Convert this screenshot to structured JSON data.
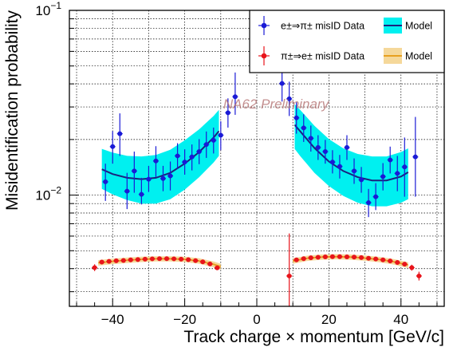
{
  "chart_data": {
    "type": "scatter",
    "title": "",
    "xlabel": "Track charge × momentum [GeV/c]",
    "ylabel": "Misidentification probability",
    "xlim": [
      -52,
      52
    ],
    "ylim": [
      0.0025,
      0.1
    ],
    "yscale": "log",
    "grid": true,
    "legend_position": "top-right",
    "watermark": "NA62 Preliminary",
    "x_ticks": [
      {
        "value": -40,
        "label": "−40"
      },
      {
        "value": -20,
        "label": "−20"
      },
      {
        "value": 0,
        "label": "0"
      },
      {
        "value": 20,
        "label": "20"
      },
      {
        "value": 40,
        "label": "40"
      }
    ],
    "y_ticks": [
      {
        "value": 0.01,
        "base": "10",
        "exp": "−2"
      },
      {
        "value": 0.1,
        "base": "10",
        "exp": "−1"
      }
    ],
    "series": [
      {
        "name": "e±⇒π± misID Data",
        "kind": "data",
        "color": "#1a1ad6",
        "points": [
          {
            "x": -42,
            "y": 0.0118,
            "lo": 0.0093,
            "hi": 0.0148
          },
          {
            "x": -40,
            "y": 0.0183,
            "lo": 0.0148,
            "hi": 0.0222
          },
          {
            "x": -38,
            "y": 0.0215,
            "lo": 0.0163,
            "hi": 0.0277
          },
          {
            "x": -36,
            "y": 0.0105,
            "lo": 0.0084,
            "hi": 0.0132
          },
          {
            "x": -34,
            "y": 0.0135,
            "lo": 0.0103,
            "hi": 0.0172
          },
          {
            "x": -32,
            "y": 0.0101,
            "lo": 0.0089,
            "hi": 0.0124
          },
          {
            "x": -30,
            "y": 0.0122,
            "lo": 0.0104,
            "hi": 0.0144
          },
          {
            "x": -28,
            "y": 0.0153,
            "lo": 0.0125,
            "hi": 0.0184
          },
          {
            "x": -26,
            "y": 0.0123,
            "lo": 0.0105,
            "hi": 0.0144
          },
          {
            "x": -24,
            "y": 0.0127,
            "lo": 0.0106,
            "hi": 0.0152
          },
          {
            "x": -22,
            "y": 0.0163,
            "lo": 0.0139,
            "hi": 0.0191
          },
          {
            "x": -20,
            "y": 0.0151,
            "lo": 0.0129,
            "hi": 0.0177
          },
          {
            "x": -18,
            "y": 0.0161,
            "lo": 0.0136,
            "hi": 0.0188
          },
          {
            "x": -16,
            "y": 0.0172,
            "lo": 0.0147,
            "hi": 0.0201
          },
          {
            "x": -14,
            "y": 0.0188,
            "lo": 0.0159,
            "hi": 0.0221
          },
          {
            "x": -12,
            "y": 0.0198,
            "lo": 0.0168,
            "hi": 0.0232
          },
          {
            "x": -10,
            "y": 0.0211,
            "lo": 0.0175,
            "hi": 0.0251
          },
          {
            "x": -8,
            "y": 0.0279,
            "lo": 0.0232,
            "hi": 0.0334
          },
          {
            "x": -6,
            "y": 0.0341,
            "lo": 0.0272,
            "hi": 0.0461
          },
          {
            "x": 7,
            "y": 0.0402,
            "lo": 0.0321,
            "hi": 0.0533
          },
          {
            "x": 9,
            "y": 0.0332,
            "lo": 0.0268,
            "hi": 0.0411
          },
          {
            "x": 11,
            "y": 0.0262,
            "lo": 0.0215,
            "hi": 0.0318
          },
          {
            "x": 13,
            "y": 0.0231,
            "lo": 0.0194,
            "hi": 0.0274
          },
          {
            "x": 15,
            "y": 0.0203,
            "lo": 0.0172,
            "hi": 0.0238
          },
          {
            "x": 17,
            "y": 0.0181,
            "lo": 0.0155,
            "hi": 0.0211
          },
          {
            "x": 19,
            "y": 0.0172,
            "lo": 0.0148,
            "hi": 0.0199
          },
          {
            "x": 21,
            "y": 0.0151,
            "lo": 0.0131,
            "hi": 0.0175
          },
          {
            "x": 23,
            "y": 0.0143,
            "lo": 0.0123,
            "hi": 0.0165
          },
          {
            "x": 25,
            "y": 0.0181,
            "lo": 0.0155,
            "hi": 0.0211
          },
          {
            "x": 27,
            "y": 0.0135,
            "lo": 0.0115,
            "hi": 0.0158
          },
          {
            "x": 29,
            "y": 0.0121,
            "lo": 0.0103,
            "hi": 0.0142
          },
          {
            "x": 31,
            "y": 0.0091,
            "lo": 0.0076,
            "hi": 0.0108
          },
          {
            "x": 33,
            "y": 0.0098,
            "lo": 0.0083,
            "hi": 0.0116
          },
          {
            "x": 35,
            "y": 0.0126,
            "lo": 0.0106,
            "hi": 0.0149
          },
          {
            "x": 37,
            "y": 0.0155,
            "lo": 0.0131,
            "hi": 0.0183
          },
          {
            "x": 39,
            "y": 0.0131,
            "lo": 0.0105,
            "hi": 0.0163
          },
          {
            "x": 41,
            "y": 0.0142,
            "lo": 0.0098,
            "hi": 0.0205
          },
          {
            "x": 44,
            "y": 0.0161,
            "lo": 0.0098,
            "hi": 0.0265
          }
        ]
      },
      {
        "name": "Model",
        "kind": "model",
        "color": "#1a237e",
        "band_color": "#00f0f0",
        "segments": [
          {
            "x": [
              -43,
              -40,
              -36,
              -32,
              -28,
              -24,
              -20,
              -16,
              -12,
              -10.5
            ],
            "y": [
              0.0138,
              0.013,
              0.0124,
              0.0122,
              0.0124,
              0.0132,
              0.0148,
              0.0171,
              0.0205,
              0.0222
            ],
            "lo": [
              0.0108,
              0.0101,
              0.0094,
              0.009,
              0.009,
              0.0095,
              0.0107,
              0.0125,
              0.015,
              0.0163
            ],
            "hi": [
              0.0178,
              0.017,
              0.0163,
              0.0162,
              0.0165,
              0.0176,
              0.0198,
              0.0227,
              0.0268,
              0.0289
            ]
          },
          {
            "x": [
              10.5,
              12,
              16,
              20,
              24,
              28,
              32,
              36,
              40,
              42
            ],
            "y": [
              0.024,
              0.0222,
              0.018,
              0.0152,
              0.0135,
              0.0125,
              0.012,
              0.012,
              0.0126,
              0.0133
            ],
            "lo": [
              0.0178,
              0.0163,
              0.0132,
              0.0112,
              0.0099,
              0.0091,
              0.0087,
              0.0087,
              0.0091,
              0.0095
            ],
            "hi": [
              0.031,
              0.029,
              0.0237,
              0.0201,
              0.0179,
              0.0167,
              0.0162,
              0.0162,
              0.0171,
              0.0179
            ]
          }
        ]
      },
      {
        "name": "π±⇒e± misID Data",
        "kind": "data",
        "color": "#e8141b",
        "points": [
          {
            "x": -45,
            "y": 0.00405,
            "lo": 0.00388,
            "hi": 0.00422
          },
          {
            "x": -43,
            "y": 0.00434,
            "lo": 0.00422,
            "hi": 0.00446
          },
          {
            "x": -41,
            "y": 0.00438,
            "lo": 0.00428,
            "hi": 0.00448
          },
          {
            "x": -39,
            "y": 0.00441,
            "lo": 0.00431,
            "hi": 0.00451
          },
          {
            "x": -37,
            "y": 0.00443,
            "lo": 0.00433,
            "hi": 0.00453
          },
          {
            "x": -35,
            "y": 0.00446,
            "lo": 0.00436,
            "hi": 0.00456
          },
          {
            "x": -33,
            "y": 0.00448,
            "lo": 0.00438,
            "hi": 0.00458
          },
          {
            "x": -31,
            "y": 0.0045,
            "lo": 0.0044,
            "hi": 0.0046
          },
          {
            "x": -29,
            "y": 0.00452,
            "lo": 0.00442,
            "hi": 0.00462
          },
          {
            "x": -27,
            "y": 0.00453,
            "lo": 0.00443,
            "hi": 0.00463
          },
          {
            "x": -25,
            "y": 0.00453,
            "lo": 0.00443,
            "hi": 0.00463
          },
          {
            "x": -23,
            "y": 0.00452,
            "lo": 0.00442,
            "hi": 0.00462
          },
          {
            "x": -21,
            "y": 0.0045,
            "lo": 0.0044,
            "hi": 0.0046
          },
          {
            "x": -19,
            "y": 0.00447,
            "lo": 0.00437,
            "hi": 0.00457
          },
          {
            "x": -17,
            "y": 0.00442,
            "lo": 0.00432,
            "hi": 0.00452
          },
          {
            "x": -15,
            "y": 0.00435,
            "lo": 0.00425,
            "hi": 0.00445
          },
          {
            "x": -13,
            "y": 0.00424,
            "lo": 0.00414,
            "hi": 0.00434
          },
          {
            "x": -11,
            "y": 0.00404,
            "lo": 0.00394,
            "hi": 0.00414
          },
          {
            "x": 9,
            "y": 0.00365,
            "lo": 0.0023,
            "hi": 0.0062
          },
          {
            "x": 11,
            "y": 0.00446,
            "lo": 0.00436,
            "hi": 0.00456
          },
          {
            "x": 13,
            "y": 0.00453,
            "lo": 0.00443,
            "hi": 0.00463
          },
          {
            "x": 15,
            "y": 0.00458,
            "lo": 0.00448,
            "hi": 0.00468
          },
          {
            "x": 17,
            "y": 0.00461,
            "lo": 0.00451,
            "hi": 0.00471
          },
          {
            "x": 19,
            "y": 0.00463,
            "lo": 0.00453,
            "hi": 0.00473
          },
          {
            "x": 21,
            "y": 0.00464,
            "lo": 0.00454,
            "hi": 0.00474
          },
          {
            "x": 23,
            "y": 0.00464,
            "lo": 0.00454,
            "hi": 0.00474
          },
          {
            "x": 25,
            "y": 0.00463,
            "lo": 0.00453,
            "hi": 0.00473
          },
          {
            "x": 27,
            "y": 0.00462,
            "lo": 0.00452,
            "hi": 0.00472
          },
          {
            "x": 29,
            "y": 0.00459,
            "lo": 0.00449,
            "hi": 0.00469
          },
          {
            "x": 31,
            "y": 0.00455,
            "lo": 0.00445,
            "hi": 0.00465
          },
          {
            "x": 33,
            "y": 0.00451,
            "lo": 0.00441,
            "hi": 0.00461
          },
          {
            "x": 35,
            "y": 0.00446,
            "lo": 0.00436,
            "hi": 0.00456
          },
          {
            "x": 37,
            "y": 0.0044,
            "lo": 0.0043,
            "hi": 0.0045
          },
          {
            "x": 39,
            "y": 0.00432,
            "lo": 0.00422,
            "hi": 0.00442
          },
          {
            "x": 41,
            "y": 0.00423,
            "lo": 0.00413,
            "hi": 0.00433
          },
          {
            "x": 43,
            "y": 0.00405,
            "lo": 0.0039,
            "hi": 0.0042
          },
          {
            "x": 45,
            "y": 0.00365,
            "lo": 0.00345,
            "hi": 0.00385
          }
        ]
      },
      {
        "name": "Model",
        "kind": "model",
        "color": "#e8a020",
        "band_color": "#f5d89a",
        "segments": [
          {
            "x": [
              -44,
              -40,
              -36,
              -32,
              -28,
              -24,
              -20,
              -16,
              -12,
              -10
            ],
            "y": [
              0.0043,
              0.00438,
              0.00444,
              0.00449,
              0.00452,
              0.00452,
              0.00449,
              0.0044,
              0.00422,
              0.0041
            ],
            "lo": [
              0.00415,
              0.00423,
              0.00429,
              0.00434,
              0.00437,
              0.00437,
              0.00434,
              0.00425,
              0.00407,
              0.00395
            ],
            "hi": [
              0.00445,
              0.00453,
              0.00459,
              0.00464,
              0.00467,
              0.00467,
              0.00464,
              0.00455,
              0.00437,
              0.00425
            ]
          },
          {
            "x": [
              10,
              14,
              18,
              22,
              26,
              30,
              34,
              38,
              42
            ],
            "y": [
              0.0044,
              0.00455,
              0.00462,
              0.00464,
              0.00462,
              0.00456,
              0.00448,
              0.00436,
              0.00418
            ],
            "lo": [
              0.00425,
              0.0044,
              0.00447,
              0.00449,
              0.00447,
              0.00441,
              0.00433,
              0.00421,
              0.00403
            ],
            "hi": [
              0.00455,
              0.0047,
              0.00477,
              0.00479,
              0.00477,
              0.00471,
              0.00463,
              0.00451,
              0.00433
            ]
          }
        ]
      }
    ]
  }
}
